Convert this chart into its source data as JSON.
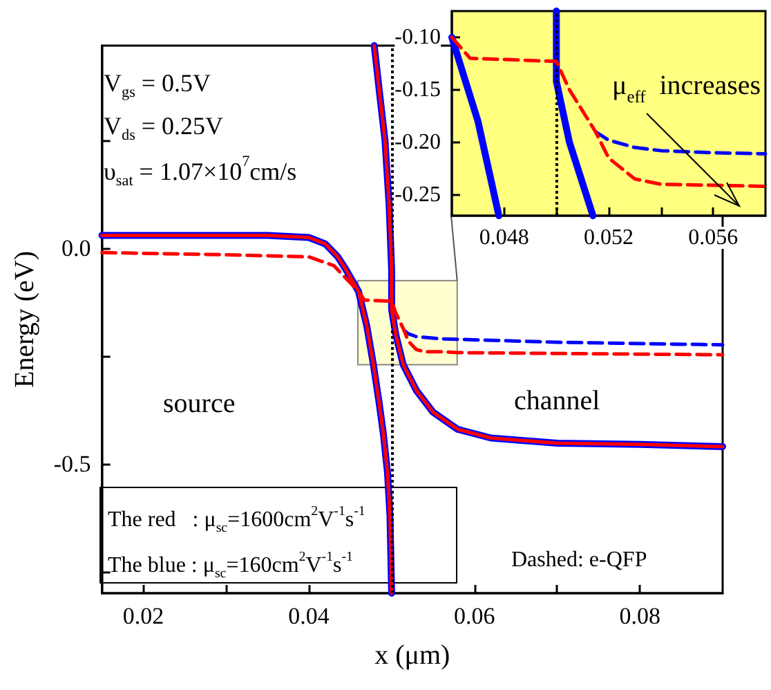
{
  "chart_data": [
    {
      "type": "line",
      "xlabel": "x (μm)",
      "ylabel": "Energy (eV)",
      "xlim": [
        0.015,
        0.09
      ],
      "ylim": [
        -0.8,
        0.47
      ],
      "xticks": [
        {
          "value": 0.02,
          "label": "0.02"
        },
        {
          "value": 0.03,
          "label": null
        },
        {
          "value": 0.04,
          "label": "0.04"
        },
        {
          "value": 0.05,
          "label": null
        },
        {
          "value": 0.06,
          "label": "0.06"
        },
        {
          "value": 0.07,
          "label": null
        },
        {
          "value": 0.08,
          "label": "0.08"
        }
      ],
      "yticks": [
        {
          "value": -0.75,
          "label": null
        },
        {
          "value": -0.5,
          "label": "-0.5"
        },
        {
          "value": -0.25,
          "label": null
        },
        {
          "value": 0,
          "label": "0.0"
        },
        {
          "value": 0.25,
          "label": null
        }
      ],
      "series": [
        {
          "color": "#0000ff",
          "line_style": "solid",
          "x": [
            0.015,
            0.035,
            0.04,
            0.042,
            0.0435,
            0.0445,
            0.046,
            0.047,
            0.0478,
            0.0485,
            0.049,
            0.0495,
            0.0498,
            0.05
          ],
          "values": [
            0.03,
            0.03,
            0.025,
            0.01,
            -0.02,
            -0.05,
            -0.1,
            -0.18,
            -0.27,
            -0.36,
            -0.43,
            -0.52,
            -0.62,
            -0.8
          ]
        },
        {
          "color": "#ff0000",
          "line_style": "solid",
          "x": [
            0.015,
            0.035,
            0.04,
            0.042,
            0.0435,
            0.0445,
            0.046,
            0.047,
            0.0478,
            0.0485,
            0.049,
            0.0495,
            0.0498,
            0.05
          ],
          "values": [
            0.03,
            0.03,
            0.025,
            0.01,
            -0.02,
            -0.05,
            -0.1,
            -0.18,
            -0.27,
            -0.36,
            -0.43,
            -0.52,
            -0.62,
            -0.8
          ]
        },
        {
          "color": "#0000ff",
          "line_style": "solid",
          "x": [
            0.0479,
            0.0486,
            0.0492,
            0.0497,
            0.05,
            0.05,
            0.0505,
            0.0514,
            0.053,
            0.055,
            0.058,
            0.062,
            0.07,
            0.08,
            0.09
          ],
          "values": [
            0.47,
            0.35,
            0.25,
            0.1,
            -0.05,
            -0.142,
            -0.2,
            -0.27,
            -0.33,
            -0.38,
            -0.42,
            -0.44,
            -0.452,
            -0.455,
            -0.46
          ]
        },
        {
          "color": "#ff0000",
          "line_style": "solid",
          "x": [
            0.0479,
            0.0486,
            0.0492,
            0.0497,
            0.05,
            0.05,
            0.0505,
            0.0514,
            0.053,
            0.055,
            0.058,
            0.062,
            0.07,
            0.08,
            0.09
          ],
          "values": [
            0.47,
            0.35,
            0.25,
            0.1,
            -0.05,
            -0.142,
            -0.2,
            -0.27,
            -0.33,
            -0.38,
            -0.42,
            -0.44,
            -0.452,
            -0.455,
            -0.46
          ]
        },
        {
          "color": "#0000ff",
          "line_style": "dashed",
          "x": [
            0.0515,
            0.052,
            0.053,
            0.056,
            0.07,
            0.09
          ],
          "values": [
            -0.19,
            -0.198,
            -0.205,
            -0.21,
            -0.218,
            -0.224
          ]
        },
        {
          "color": "#ff0000",
          "line_style": "dashed",
          "x": [
            0.015,
            0.03,
            0.04,
            0.043,
            0.045,
            0.046,
            0.0467,
            0.05,
            0.0505,
            0.051,
            0.0515,
            0.052,
            0.053,
            0.054,
            0.056,
            0.058,
            0.07,
            0.09
          ],
          "values": [
            -0.01,
            -0.015,
            -0.02,
            -0.04,
            -0.08,
            -0.1,
            -0.12,
            -0.123,
            -0.15,
            -0.17,
            -0.19,
            -0.215,
            -0.235,
            -0.24,
            -0.24,
            -0.242,
            -0.244,
            -0.247
          ]
        }
      ],
      "ref_lines": [
        {
          "axis": "x",
          "value": 0.05,
          "color": "#000000",
          "line_style": "dotted"
        }
      ],
      "annotations": [
        "V$_{gs}$ = 0.5V",
        "V$_{ds}$ = 0.25V",
        "υ$_{sat}$ = 1.07×10$^{7}$cm/s",
        "source",
        "channel",
        "The red   : μ$_{sc}$=1600cm$^{2}$V$^{-1}$s$^{-1}$",
        "The blue : μ$_{sc}$=160cm$^{2}$V$^{-1}$s$^{-1}$",
        "Dashed: e-QFP"
      ]
    },
    {
      "type": "line",
      "xlim": [
        0.046,
        0.058
      ],
      "ylim": [
        -0.27,
        -0.075
      ],
      "xticks": [
        {
          "value": 0.048,
          "label": "0.048"
        },
        {
          "value": 0.05,
          "label": null
        },
        {
          "value": 0.052,
          "label": "0.052"
        },
        {
          "value": 0.054,
          "label": null
        },
        {
          "value": 0.056,
          "label": "0.056"
        }
      ],
      "yticks": [
        {
          "value": -0.25,
          "label": "-0.25"
        },
        {
          "value": -0.2,
          "label": "-0.20"
        },
        {
          "value": -0.15,
          "label": "-0.15"
        },
        {
          "value": -0.1,
          "label": "-0.10"
        }
      ],
      "series": [
        {
          "color": "#0000ff",
          "line_style": "solid",
          "x": [
            0.046,
            0.047,
            0.0478
          ],
          "values": [
            -0.1,
            -0.18,
            -0.27
          ]
        },
        {
          "color": "#0000ff",
          "line_style": "solid",
          "x": [
            0.05,
            0.05,
            0.0505,
            0.0514
          ],
          "values": [
            -0.075,
            -0.142,
            -0.2,
            -0.27
          ]
        },
        {
          "color": "#0000ff",
          "line_style": "dashed",
          "x": [
            0.0515,
            0.052,
            0.053,
            0.054,
            0.056,
            0.058
          ],
          "values": [
            -0.19,
            -0.198,
            -0.205,
            -0.208,
            -0.21,
            -0.211
          ]
        },
        {
          "color": "#ff0000",
          "line_style": "dashed",
          "x": [
            0.046,
            0.0467,
            0.05,
            0.0505,
            0.051,
            0.0515,
            0.052,
            0.053,
            0.054,
            0.058
          ],
          "values": [
            -0.1,
            -0.12,
            -0.123,
            -0.15,
            -0.17,
            -0.19,
            -0.215,
            -0.235,
            -0.24,
            -0.242
          ]
        }
      ],
      "ref_lines": [
        {
          "axis": "x",
          "value": 0.05,
          "color": "#000000",
          "line_style": "dotted"
        }
      ],
      "annotations": [
        "μ$_{eff}$  increases"
      ]
    }
  ]
}
